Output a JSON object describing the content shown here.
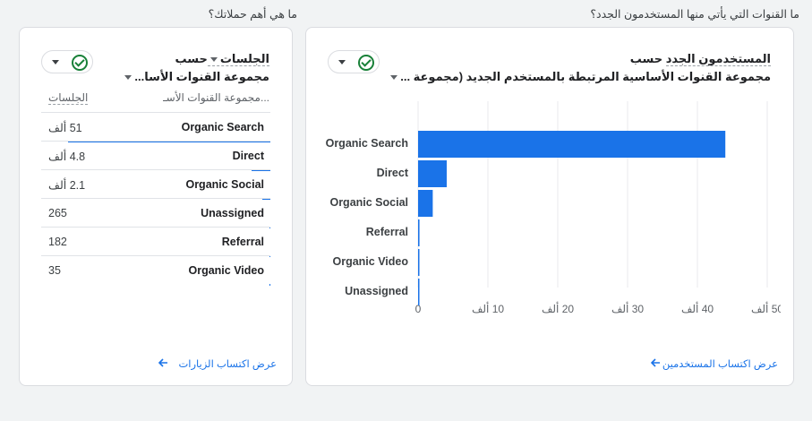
{
  "left_section_title": "ما هي أهم حملاتك؟",
  "right_section_title": "ما القنوات التي يأتي منها المستخدمون الجدد؟",
  "left_card": {
    "metric": "الجلسات",
    "by": "حسب",
    "dimension": "مجموعة القنوات الأسا...",
    "col_dimension": "مجموعة القنوات الأسـ...",
    "col_metric": "الجلسات",
    "rows": [
      {
        "label": "Organic Search",
        "value": "51 ألف",
        "share": 1.0
      },
      {
        "label": "Direct",
        "value": "4.8 ألف",
        "share": 0.094
      },
      {
        "label": "Organic Social",
        "value": "2.1 ألف",
        "share": 0.041
      },
      {
        "label": "Unassigned",
        "value": "265",
        "share": 0.005
      },
      {
        "label": "Referral",
        "value": "182",
        "share": 0.0036
      },
      {
        "label": "Organic Video",
        "value": "35",
        "share": 0.0007
      }
    ],
    "footer_link": "عرض اكتساب الزيارات"
  },
  "right_card": {
    "metric": "المستخدمون الجدد",
    "by": "حسب",
    "dimension": "مجموعة القنوات الأساسية المرتبطة بالمستخدم الجديد (مجموعة ...",
    "footer_link": "عرض اكتساب المستخدمين"
  },
  "chart_data": {
    "type": "bar",
    "orientation": "horizontal",
    "categories": [
      "Organic Search",
      "Direct",
      "Organic Social",
      "Referral",
      "Organic Video",
      "Unassigned"
    ],
    "values": [
      44,
      4.1,
      2.1,
      0.2,
      0.1,
      0.1
    ],
    "xlim": [
      0,
      50
    ],
    "x_ticks": [
      "0",
      "10 ألف",
      "20 ألف",
      "30 ألف",
      "40 ألف",
      "50 ألف"
    ],
    "grid": true,
    "bar_color": "#1a73e8"
  },
  "colors": {
    "accent": "#1a73e8",
    "check": "#188038"
  }
}
